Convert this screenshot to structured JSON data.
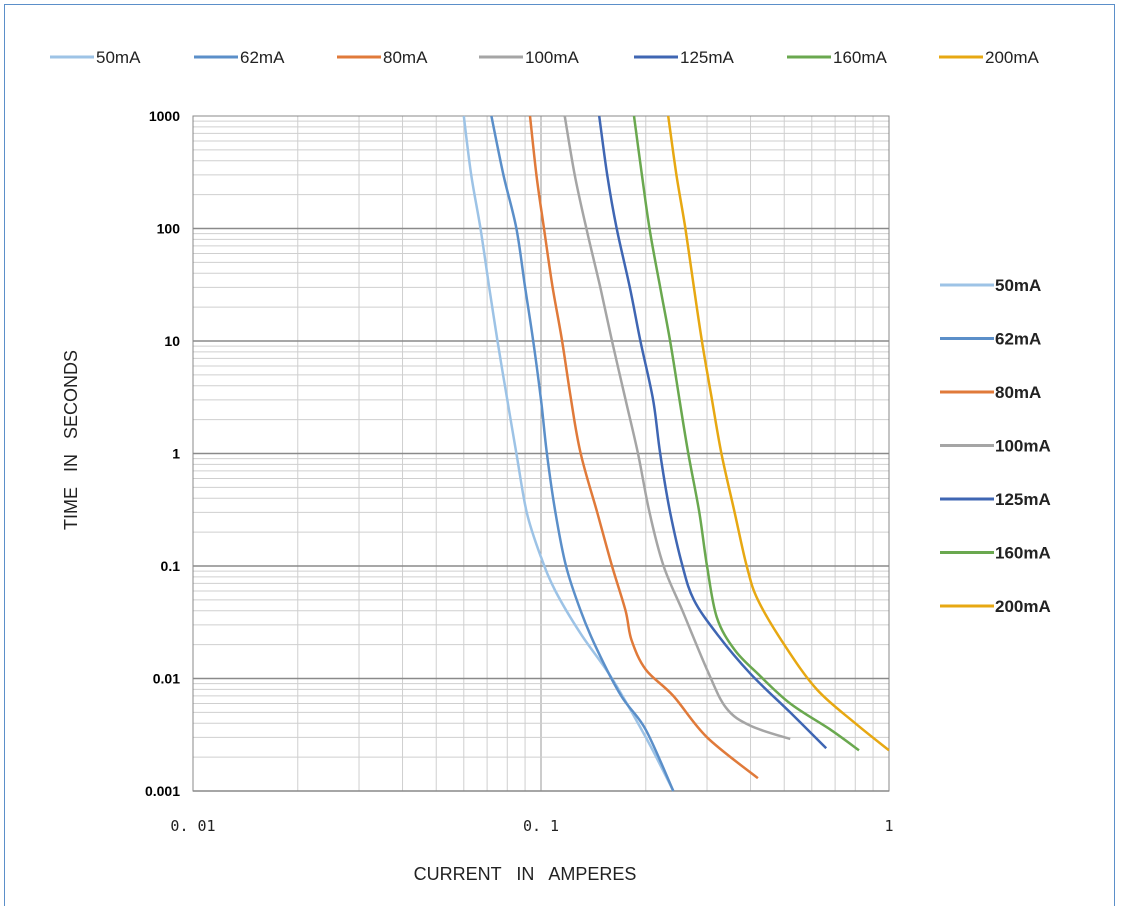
{
  "chart_data": {
    "type": "line",
    "xlabel": "CURRENT   IN   AMPERES",
    "ylabel": "TIME   IN   SECONDS",
    "xscale": "log",
    "yscale": "log",
    "xlim": [
      0.01,
      1
    ],
    "ylim": [
      0.001,
      1000
    ],
    "x_tick_labels": [
      "0.01",
      "0.1",
      "1"
    ],
    "y_tick_labels": [
      "0.001",
      "0.01",
      "0.1",
      "1",
      "10",
      "100",
      "1000"
    ],
    "grid": true,
    "legend_top": "top",
    "legend_right": "right",
    "series": [
      {
        "name": "50mA",
        "color": "#9dc3e6",
        "points": [
          [
            0.06,
            1000
          ],
          [
            0.063,
            300
          ],
          [
            0.067,
            100
          ],
          [
            0.071,
            30
          ],
          [
            0.075,
            10
          ],
          [
            0.08,
            3
          ],
          [
            0.085,
            1
          ],
          [
            0.091,
            0.3
          ],
          [
            0.1,
            0.12
          ],
          [
            0.11,
            0.06
          ],
          [
            0.13,
            0.025
          ],
          [
            0.16,
            0.01
          ],
          [
            0.2,
            0.003
          ],
          [
            0.23,
            0.0013
          ],
          [
            0.24,
            0.001
          ]
        ]
      },
      {
        "name": "62mA",
        "color": "#5b8fc9",
        "points": [
          [
            0.072,
            1000
          ],
          [
            0.078,
            300
          ],
          [
            0.085,
            100
          ],
          [
            0.09,
            30
          ],
          [
            0.095,
            10
          ],
          [
            0.1,
            3
          ],
          [
            0.104,
            1
          ],
          [
            0.11,
            0.3
          ],
          [
            0.118,
            0.1
          ],
          [
            0.13,
            0.04
          ],
          [
            0.145,
            0.018
          ],
          [
            0.17,
            0.007
          ],
          [
            0.2,
            0.0035
          ],
          [
            0.24,
            0.001
          ]
        ]
      },
      {
        "name": "80mA",
        "color": "#e07a3a",
        "points": [
          [
            0.093,
            1000
          ],
          [
            0.097,
            300
          ],
          [
            0.102,
            100
          ],
          [
            0.108,
            30
          ],
          [
            0.115,
            10
          ],
          [
            0.122,
            3
          ],
          [
            0.13,
            1
          ],
          [
            0.145,
            0.3
          ],
          [
            0.16,
            0.1
          ],
          [
            0.175,
            0.04
          ],
          [
            0.182,
            0.022
          ],
          [
            0.2,
            0.012
          ],
          [
            0.24,
            0.007
          ],
          [
            0.3,
            0.003
          ],
          [
            0.42,
            0.0013
          ]
        ]
      },
      {
        "name": "100mA",
        "color": "#a5a5a5",
        "points": [
          [
            0.117,
            1000
          ],
          [
            0.125,
            300
          ],
          [
            0.135,
            100
          ],
          [
            0.148,
            30
          ],
          [
            0.16,
            10
          ],
          [
            0.175,
            3
          ],
          [
            0.19,
            1
          ],
          [
            0.205,
            0.3
          ],
          [
            0.225,
            0.1
          ],
          [
            0.255,
            0.04
          ],
          [
            0.3,
            0.012
          ],
          [
            0.34,
            0.0055
          ],
          [
            0.4,
            0.0038
          ],
          [
            0.52,
            0.0029
          ]
        ]
      },
      {
        "name": "125mA",
        "color": "#3f66b3",
        "points": [
          [
            0.147,
            1000
          ],
          [
            0.155,
            300
          ],
          [
            0.165,
            100
          ],
          [
            0.18,
            30
          ],
          [
            0.193,
            10
          ],
          [
            0.21,
            3
          ],
          [
            0.22,
            1
          ],
          [
            0.235,
            0.3
          ],
          [
            0.255,
            0.1
          ],
          [
            0.275,
            0.05
          ],
          [
            0.32,
            0.025
          ],
          [
            0.4,
            0.011
          ],
          [
            0.52,
            0.005
          ],
          [
            0.66,
            0.0024
          ]
        ]
      },
      {
        "name": "160mA",
        "color": "#6aa84f",
        "points": [
          [
            0.185,
            1000
          ],
          [
            0.195,
            300
          ],
          [
            0.205,
            100
          ],
          [
            0.22,
            30
          ],
          [
            0.235,
            10
          ],
          [
            0.25,
            3
          ],
          [
            0.265,
            1
          ],
          [
            0.285,
            0.3
          ],
          [
            0.3,
            0.1
          ],
          [
            0.32,
            0.035
          ],
          [
            0.36,
            0.018
          ],
          [
            0.42,
            0.011
          ],
          [
            0.52,
            0.006
          ],
          [
            0.68,
            0.0035
          ],
          [
            0.82,
            0.0023
          ]
        ]
      },
      {
        "name": "200mA",
        "color": "#e7a812",
        "points": [
          [
            0.232,
            1000
          ],
          [
            0.245,
            300
          ],
          [
            0.26,
            100
          ],
          [
            0.275,
            30
          ],
          [
            0.29,
            10
          ],
          [
            0.31,
            3
          ],
          [
            0.33,
            1
          ],
          [
            0.36,
            0.3
          ],
          [
            0.39,
            0.1
          ],
          [
            0.42,
            0.05
          ],
          [
            0.5,
            0.02
          ],
          [
            0.62,
            0.008
          ],
          [
            0.8,
            0.004
          ],
          [
            1.0,
            0.0023
          ]
        ]
      }
    ]
  }
}
